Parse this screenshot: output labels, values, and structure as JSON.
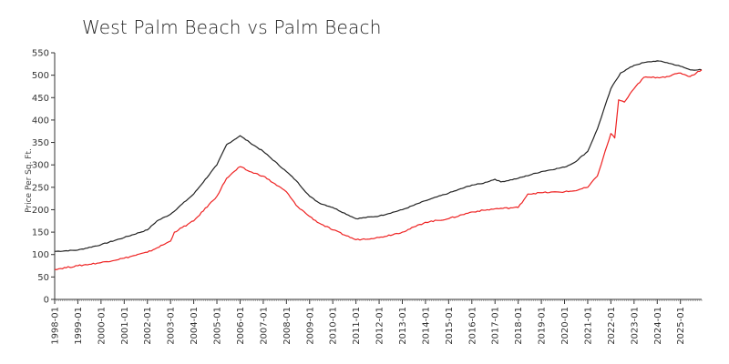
{
  "chart_data": {
    "type": "line",
    "title": "West Palm Beach vs Palm Beach",
    "xlabel": "",
    "ylabel": "Price Per Sq. Ft.",
    "ylim": [
      0,
      550
    ],
    "yticks": [
      0,
      50,
      100,
      150,
      200,
      250,
      300,
      350,
      400,
      450,
      500,
      550
    ],
    "xticks": [
      "1998-01",
      "1999-01",
      "2000-01",
      "2001-01",
      "2002-01",
      "2003-01",
      "2004-01",
      "2005-01",
      "2006-01",
      "2007-01",
      "2008-01",
      "2009-01",
      "2010-01",
      "2011-01",
      "2012-01",
      "2013-01",
      "2014-01",
      "2015-01",
      "2016-01",
      "2017-01",
      "2018-01",
      "2019-01",
      "2020-01",
      "2021-01",
      "2022-01",
      "2023-01",
      "2024-01",
      "2025-01"
    ],
    "xrange": [
      "1998-01",
      "2025-12"
    ],
    "grid": false,
    "legend": "none",
    "series": [
      {
        "color": "#222222",
        "x": [
          "1998-01",
          "1999-01",
          "2000-01",
          "2001-01",
          "2002-01",
          "2002-06",
          "2003-01",
          "2004-01",
          "2005-01",
          "2005-06",
          "2006-01",
          "2006-06",
          "2007-01",
          "2008-01",
          "2008-06",
          "2009-01",
          "2009-06",
          "2010-01",
          "2011-01",
          "2012-01",
          "2013-01",
          "2014-01",
          "2015-01",
          "2016-01",
          "2016-06",
          "2017-01",
          "2017-04",
          "2018-01",
          "2019-01",
          "2020-01",
          "2020-06",
          "2021-01",
          "2021-06",
          "2022-01",
          "2022-06",
          "2023-01",
          "2023-06",
          "2024-01",
          "2024-06",
          "2025-01",
          "2025-06",
          "2025-12"
        ],
        "values": [
          107,
          110,
          122,
          138,
          155,
          175,
          190,
          235,
          300,
          345,
          365,
          350,
          330,
          285,
          265,
          230,
          215,
          205,
          180,
          186,
          200,
          220,
          237,
          255,
          258,
          268,
          262,
          270,
          285,
          295,
          305,
          330,
          380,
          470,
          505,
          522,
          528,
          532,
          528,
          520,
          512,
          512
        ]
      },
      {
        "color": "#ee2222",
        "x": [
          "1998-01",
          "1999-01",
          "2000-01",
          "2001-01",
          "2002-01",
          "2002-06",
          "2003-01",
          "2003-03",
          "2004-01",
          "2005-01",
          "2005-06",
          "2006-01",
          "2006-06",
          "2007-01",
          "2008-01",
          "2008-06",
          "2009-01",
          "2009-06",
          "2010-01",
          "2011-01",
          "2012-01",
          "2013-01",
          "2014-01",
          "2015-01",
          "2016-01",
          "2017-01",
          "2018-01",
          "2018-06",
          "2019-01",
          "2020-01",
          "2020-06",
          "2021-01",
          "2021-06",
          "2022-01",
          "2022-03",
          "2022-05",
          "2022-08",
          "2023-01",
          "2023-06",
          "2024-01",
          "2024-06",
          "2025-01",
          "2025-06",
          "2025-12"
        ],
        "values": [
          67,
          75,
          82,
          92,
          105,
          115,
          130,
          150,
          175,
          230,
          270,
          296,
          285,
          275,
          240,
          210,
          185,
          170,
          155,
          133,
          138,
          150,
          172,
          180,
          195,
          202,
          205,
          235,
          238,
          240,
          242,
          250,
          275,
          370,
          360,
          445,
          440,
          470,
          495,
          495,
          497,
          505,
          497,
          512
        ]
      }
    ]
  }
}
